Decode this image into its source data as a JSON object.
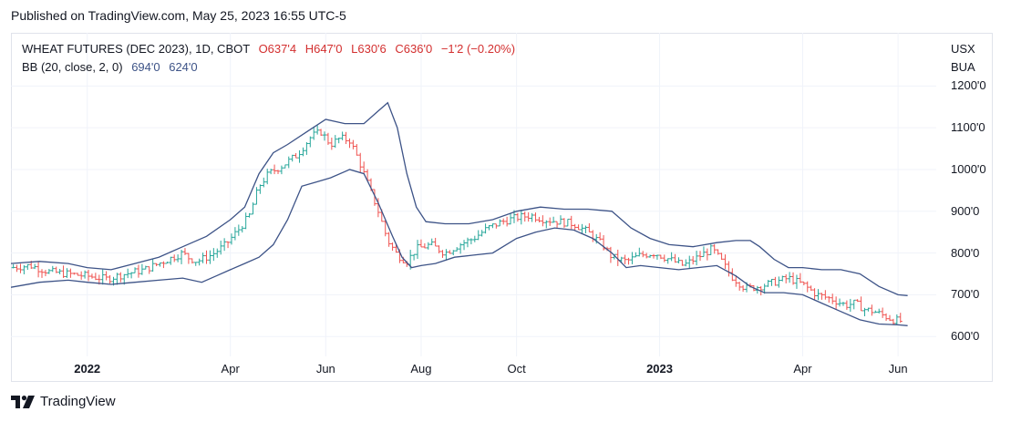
{
  "header": {
    "published": "Published on TradingView.com, May 25, 2023 16:55 UTC-5"
  },
  "legend": {
    "symbol": "WHEAT FUTURES (DEC 2023), 1D, CBOT",
    "open": "O637'4",
    "high": "H647'0",
    "low": "L630'6",
    "close": "C636'0",
    "change": "−1'2 (−0.20%)",
    "indicator": "BB (20, close, 2, 0)",
    "upper": "694'0",
    "lower": "624'0"
  },
  "currency": {
    "unit": "USX",
    "sub": "BUA"
  },
  "brand": {
    "name": "TradingView"
  },
  "colors": {
    "up": "#26a69a",
    "down": "#ef5350",
    "bands": "#3d5387",
    "grid": "#f0f3fa"
  },
  "chart_data": {
    "type": "bar",
    "title": "WHEAT FUTURES (DEC 2023), 1D, CBOT",
    "x_ticks": [
      "2022",
      "Apr",
      "Jun",
      "Aug",
      "Oct",
      "2023",
      "Apr",
      "Jun"
    ],
    "y_ticks": [
      "1200'0",
      "1100'0",
      "1000'0",
      "900'0",
      "800'0",
      "700'0",
      "600'0"
    ],
    "y_tick_values": [
      1200,
      1100,
      1000,
      900,
      800,
      700,
      600
    ],
    "ylim": [
      570,
      1240
    ],
    "x_month_index_ticks": [
      0,
      3,
      5,
      7,
      9,
      12,
      15,
      17
    ],
    "xlim_months": [
      -1.6,
      17.8
    ],
    "x_unit": "months since Jan 2022",
    "close_series": {
      "name": "Close",
      "points": [
        [
          -1.6,
          765
        ],
        [
          -1.2,
          770
        ],
        [
          -0.8,
          755
        ],
        [
          -0.4,
          750
        ],
        [
          0.0,
          745
        ],
        [
          0.4,
          738
        ],
        [
          0.8,
          750
        ],
        [
          1.2,
          760
        ],
        [
          1.5,
          775
        ],
        [
          1.8,
          790
        ],
        [
          2.0,
          800
        ],
        [
          2.1,
          790
        ],
        [
          2.3,
          780
        ],
        [
          2.6,
          795
        ],
        [
          2.9,
          820
        ],
        [
          3.2,
          860
        ],
        [
          3.4,
          890
        ],
        [
          3.6,
          960
        ],
        [
          3.8,
          990
        ],
        [
          4.1,
          1010
        ],
        [
          4.4,
          1035
        ],
        [
          4.7,
          1080
        ],
        [
          4.9,
          1090
        ],
        [
          5.1,
          1060
        ],
        [
          5.3,
          1075
        ],
        [
          5.5,
          1070
        ],
        [
          5.7,
          1020
        ],
        [
          5.9,
          960
        ],
        [
          6.1,
          900
        ],
        [
          6.3,
          830
        ],
        [
          6.5,
          795
        ],
        [
          6.7,
          780
        ],
        [
          6.9,
          810
        ],
        [
          7.2,
          820
        ],
        [
          7.5,
          800
        ],
        [
          7.8,
          820
        ],
        [
          8.1,
          835
        ],
        [
          8.4,
          860
        ],
        [
          8.7,
          875
        ],
        [
          9.0,
          885
        ],
        [
          9.3,
          890
        ],
        [
          9.6,
          880
        ],
        [
          9.9,
          875
        ],
        [
          10.2,
          870
        ],
        [
          10.5,
          850
        ],
        [
          10.8,
          820
        ],
        [
          11.0,
          790
        ],
        [
          11.3,
          780
        ],
        [
          11.6,
          795
        ],
        [
          11.9,
          800
        ],
        [
          12.2,
          785
        ],
        [
          12.5,
          770
        ],
        [
          12.8,
          790
        ],
        [
          13.1,
          810
        ],
        [
          13.3,
          780
        ],
        [
          13.5,
          745
        ],
        [
          13.8,
          715
        ],
        [
          14.1,
          720
        ],
        [
          14.4,
          730
        ],
        [
          14.7,
          740
        ],
        [
          15.0,
          725
        ],
        [
          15.3,
          700
        ],
        [
          15.6,
          690
        ],
        [
          15.9,
          675
        ],
        [
          16.1,
          680
        ],
        [
          16.3,
          665
        ],
        [
          16.5,
          660
        ],
        [
          16.7,
          650
        ],
        [
          16.9,
          640
        ],
        [
          17.1,
          636
        ]
      ]
    },
    "series": [
      {
        "name": "BB upper",
        "points": [
          [
            -1.6,
            775
          ],
          [
            -1.0,
            780
          ],
          [
            -0.4,
            775
          ],
          [
            0.0,
            765
          ],
          [
            0.5,
            760
          ],
          [
            1.0,
            775
          ],
          [
            1.5,
            790
          ],
          [
            2.0,
            815
          ],
          [
            2.5,
            840
          ],
          [
            3.0,
            880
          ],
          [
            3.3,
            910
          ],
          [
            3.6,
            990
          ],
          [
            3.9,
            1040
          ],
          [
            4.2,
            1060
          ],
          [
            4.6,
            1090
          ],
          [
            5.0,
            1120
          ],
          [
            5.4,
            1110
          ],
          [
            5.8,
            1110
          ],
          [
            6.1,
            1140
          ],
          [
            6.3,
            1160
          ],
          [
            6.5,
            1100
          ],
          [
            6.7,
            990
          ],
          [
            6.9,
            910
          ],
          [
            7.1,
            875
          ],
          [
            7.5,
            870
          ],
          [
            8.0,
            870
          ],
          [
            8.5,
            880
          ],
          [
            9.0,
            900
          ],
          [
            9.5,
            910
          ],
          [
            10.0,
            905
          ],
          [
            10.5,
            905
          ],
          [
            11.0,
            900
          ],
          [
            11.4,
            860
          ],
          [
            11.8,
            835
          ],
          [
            12.2,
            820
          ],
          [
            12.7,
            815
          ],
          [
            13.2,
            825
          ],
          [
            13.6,
            830
          ],
          [
            13.9,
            830
          ],
          [
            14.1,
            815
          ],
          [
            14.4,
            785
          ],
          [
            14.7,
            765
          ],
          [
            15.0,
            765
          ],
          [
            15.4,
            760
          ],
          [
            15.8,
            760
          ],
          [
            16.2,
            750
          ],
          [
            16.6,
            720
          ],
          [
            17.0,
            700
          ],
          [
            17.2,
            698
          ]
        ]
      },
      {
        "name": "BB lower",
        "points": [
          [
            -1.6,
            718
          ],
          [
            -1.0,
            730
          ],
          [
            -0.4,
            735
          ],
          [
            0.0,
            730
          ],
          [
            0.5,
            725
          ],
          [
            1.0,
            730
          ],
          [
            1.5,
            735
          ],
          [
            2.0,
            740
          ],
          [
            2.4,
            730
          ],
          [
            2.7,
            745
          ],
          [
            3.0,
            760
          ],
          [
            3.3,
            775
          ],
          [
            3.6,
            790
          ],
          [
            3.9,
            820
          ],
          [
            4.2,
            880
          ],
          [
            4.5,
            960
          ],
          [
            4.8,
            970
          ],
          [
            5.1,
            980
          ],
          [
            5.5,
            1000
          ],
          [
            5.8,
            990
          ],
          [
            6.1,
            920
          ],
          [
            6.4,
            840
          ],
          [
            6.6,
            790
          ],
          [
            6.8,
            765
          ],
          [
            7.0,
            770
          ],
          [
            7.3,
            775
          ],
          [
            7.7,
            790
          ],
          [
            8.1,
            795
          ],
          [
            8.5,
            800
          ],
          [
            9.0,
            835
          ],
          [
            9.4,
            850
          ],
          [
            9.8,
            860
          ],
          [
            10.2,
            855
          ],
          [
            10.6,
            835
          ],
          [
            11.0,
            800
          ],
          [
            11.3,
            765
          ],
          [
            11.6,
            770
          ],
          [
            12.0,
            765
          ],
          [
            12.4,
            760
          ],
          [
            12.8,
            765
          ],
          [
            13.2,
            770
          ],
          [
            13.6,
            745
          ],
          [
            13.9,
            720
          ],
          [
            14.2,
            705
          ],
          [
            14.6,
            705
          ],
          [
            15.0,
            700
          ],
          [
            15.4,
            680
          ],
          [
            15.8,
            660
          ],
          [
            16.2,
            640
          ],
          [
            16.6,
            630
          ],
          [
            17.0,
            628
          ],
          [
            17.2,
            626
          ]
        ]
      }
    ],
    "grid": true,
    "legend_position": "top-left"
  }
}
